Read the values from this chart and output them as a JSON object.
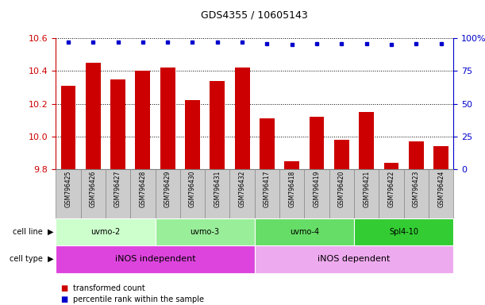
{
  "title": "GDS4355 / 10605143",
  "samples": [
    "GSM796425",
    "GSM796426",
    "GSM796427",
    "GSM796428",
    "GSM796429",
    "GSM796430",
    "GSM796431",
    "GSM796432",
    "GSM796417",
    "GSM796418",
    "GSM796419",
    "GSM796420",
    "GSM796421",
    "GSM796422",
    "GSM796423",
    "GSM796424"
  ],
  "transformed_count": [
    10.31,
    10.45,
    10.35,
    10.4,
    10.42,
    10.22,
    10.34,
    10.42,
    10.11,
    9.85,
    10.12,
    9.98,
    10.15,
    9.84,
    9.97,
    9.94
  ],
  "percentile_rank": [
    97,
    97,
    97,
    97,
    97,
    97,
    97,
    97,
    96,
    95,
    96,
    96,
    96,
    95,
    96,
    96
  ],
  "ylim_left": [
    9.8,
    10.6
  ],
  "ylim_right": [
    0,
    100
  ],
  "yticks_left": [
    9.8,
    10.0,
    10.2,
    10.4,
    10.6
  ],
  "yticks_right": [
    0,
    25,
    50,
    75,
    100
  ],
  "ytick_labels_right": [
    "0",
    "25",
    "50",
    "75",
    "100%"
  ],
  "bar_color": "#cc0000",
  "dot_color": "#0000cc",
  "cell_lines": [
    {
      "label": "uvmo-2",
      "start": 0,
      "end": 3,
      "color": "#ccffcc"
    },
    {
      "label": "uvmo-3",
      "start": 4,
      "end": 7,
      "color": "#99ee99"
    },
    {
      "label": "uvmo-4",
      "start": 8,
      "end": 11,
      "color": "#66dd66"
    },
    {
      "label": "Spl4-10",
      "start": 12,
      "end": 15,
      "color": "#33cc33"
    }
  ],
  "cell_types": [
    {
      "label": "iNOS independent",
      "start": 0,
      "end": 7,
      "color": "#dd44dd"
    },
    {
      "label": "iNOS dependent",
      "start": 8,
      "end": 15,
      "color": "#eeaaee"
    }
  ],
  "legend_bar_label": "transformed count",
  "legend_dot_label": "percentile rank within the sample",
  "bar_color_legend": "#cc0000",
  "dot_color_legend": "#0000cc",
  "bar_width": 0.6,
  "sample_box_color": "#cccccc",
  "sample_box_edge": "#888888"
}
